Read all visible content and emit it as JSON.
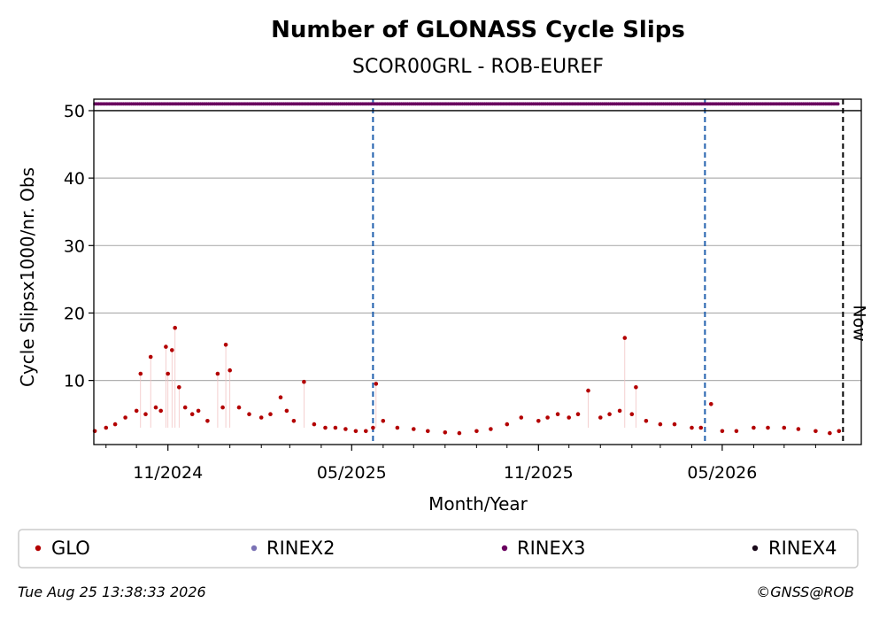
{
  "chart_data": {
    "type": "scatter",
    "title": "Number of GLONASS Cycle Slips",
    "subtitle": "SCOR00GRL - ROB-EUREF",
    "xlabel": "Month/Year",
    "ylabel": "Cycle Slipsx1000/nr. Obs",
    "x_range": [
      "2024-08-20",
      "2026-09-15"
    ],
    "ylim": [
      0.5,
      51.7
    ],
    "y_ticks": [
      10,
      20,
      30,
      40,
      50
    ],
    "x_ticks": [
      {
        "date": "2024-11-01",
        "label": "11/2024"
      },
      {
        "date": "2025-05-01",
        "label": "05/2025"
      },
      {
        "date": "2025-11-01",
        "label": "11/2025"
      },
      {
        "date": "2026-05-01",
        "label": "05/2026"
      }
    ],
    "minor_x_ticks": [
      "2024-09-01",
      "2024-10-01",
      "2024-12-01",
      "2025-01-01",
      "2025-02-01",
      "2025-03-01",
      "2025-04-01",
      "2025-06-01",
      "2025-07-01",
      "2025-08-01",
      "2025-09-01",
      "2025-10-01",
      "2025-12-01",
      "2026-01-01",
      "2026-02-01",
      "2026-03-01",
      "2026-04-01",
      "2026-06-01",
      "2026-07-01",
      "2026-08-01"
    ],
    "grid": "y",
    "vertical_lines": [
      {
        "date": "2025-05-22",
        "style": "dashed",
        "color": "#1f5fad"
      },
      {
        "date": "2026-04-14",
        "style": "dashed",
        "color": "#1f5fad"
      },
      {
        "date": "2026-08-28",
        "style": "dashed",
        "color": "#000000",
        "label": "Now"
      }
    ],
    "horizontal_line": {
      "y": 50,
      "color": "#000000"
    },
    "series": [
      {
        "name": "GLO",
        "color": "#b30000",
        "x": [
          "2024-08-21",
          "2024-09-01",
          "2024-09-10",
          "2024-09-20",
          "2024-10-01",
          "2024-10-05",
          "2024-10-10",
          "2024-10-15",
          "2024-10-20",
          "2024-10-25",
          "2024-10-30",
          "2024-11-01",
          "2024-11-05",
          "2024-11-08",
          "2024-11-12",
          "2024-11-18",
          "2024-11-25",
          "2024-12-01",
          "2024-12-10",
          "2024-12-20",
          "2024-12-25",
          "2024-12-28",
          "2025-01-01",
          "2025-01-10",
          "2025-01-20",
          "2025-02-01",
          "2025-02-10",
          "2025-02-20",
          "2025-02-26",
          "2025-03-05",
          "2025-03-15",
          "2025-03-25",
          "2025-04-05",
          "2025-04-15",
          "2025-04-25",
          "2025-05-05",
          "2025-05-15",
          "2025-05-22",
          "2025-05-25",
          "2025-06-01",
          "2025-06-15",
          "2025-07-01",
          "2025-07-15",
          "2025-08-01",
          "2025-08-15",
          "2025-09-01",
          "2025-09-15",
          "2025-10-01",
          "2025-10-15",
          "2025-11-01",
          "2025-11-10",
          "2025-11-20",
          "2025-12-01",
          "2025-12-10",
          "2025-12-20",
          "2026-01-01",
          "2026-01-10",
          "2026-01-20",
          "2026-01-25",
          "2026-02-01",
          "2026-02-05",
          "2026-02-15",
          "2026-03-01",
          "2026-03-15",
          "2026-04-01",
          "2026-04-10",
          "2026-04-20",
          "2026-05-01",
          "2026-05-15",
          "2026-06-01",
          "2026-06-15",
          "2026-07-01",
          "2026-07-15",
          "2026-08-01",
          "2026-08-15",
          "2026-08-24"
        ],
        "y": [
          2.5,
          3.0,
          3.5,
          4.5,
          5.5,
          11.0,
          5.0,
          13.5,
          6.0,
          5.5,
          15.0,
          11.0,
          14.5,
          17.8,
          9.0,
          6.0,
          5.0,
          5.5,
          4.0,
          11.0,
          6.0,
          15.3,
          11.5,
          6.0,
          5.0,
          4.5,
          5.0,
          7.5,
          5.5,
          4.0,
          9.8,
          3.5,
          3.0,
          3.0,
          2.8,
          2.5,
          2.5,
          3.0,
          9.5,
          4.0,
          3.0,
          2.8,
          2.5,
          2.3,
          2.2,
          2.5,
          2.8,
          3.5,
          4.5,
          4.0,
          4.5,
          5.0,
          4.5,
          5.0,
          8.5,
          4.5,
          5.0,
          5.5,
          16.3,
          5.0,
          9.0,
          4.0,
          3.5,
          3.5,
          3.0,
          3.0,
          6.5,
          2.5,
          2.5,
          3.0,
          3.0,
          3.0,
          2.8,
          2.5,
          2.2,
          2.5
        ]
      },
      {
        "name": "RINEX2",
        "color": "#7b72b5",
        "x": [],
        "y": []
      },
      {
        "name": "RINEX3",
        "color": "#6a005f",
        "x_start": "2024-08-21",
        "x_end": "2026-08-24",
        "y_constant": 51
      },
      {
        "name": "RINEX4",
        "color": "#1a0a1a",
        "x": [],
        "y": []
      }
    ]
  },
  "footer": {
    "timestamp": "Tue Aug 25 13:38:33 2026",
    "credit": "©GNSS@ROB"
  }
}
